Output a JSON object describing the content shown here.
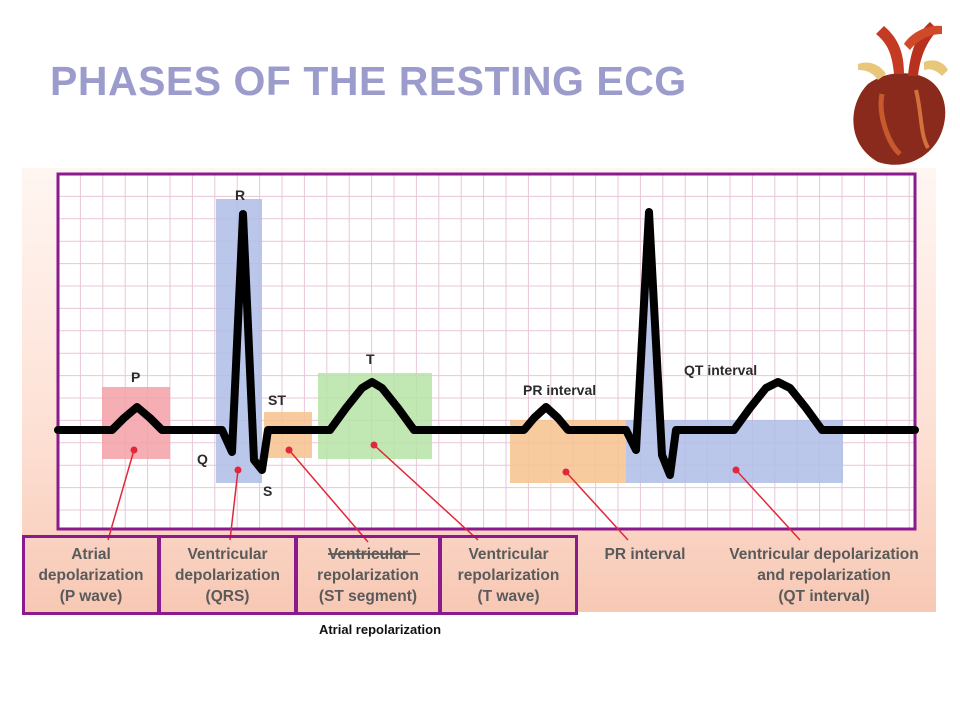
{
  "title": "PHASES OF THE RESTING ECG",
  "wave_labels": {
    "P": "P",
    "Q": "Q",
    "R": "R",
    "S": "S",
    "ST": "ST",
    "T": "T",
    "pr_interval": "PR interval",
    "qt_interval": "QT interval"
  },
  "captions": [
    "Atrial\ndepolarization\n(P wave)",
    "Ventricular\ndepolarization\n(QRS)",
    "Ventricular\nrepolarization\n(ST segment)",
    "Ventricular\nrepolarization\n(T wave)",
    "PR interval",
    "Ventricular depolarization\nand repolarization\n(QT interval)"
  ],
  "bottom_note": "Atrial repolarization",
  "colors": {
    "title": "#9c9ccc",
    "box_border": "#8b1a8e",
    "p_region": "#f4a0a8",
    "qrs_region": "#aebde6",
    "st_region": "#f7c28e",
    "t_region": "#b6e3a6",
    "pr_region": "#f7c28e",
    "qt_region": "#aebde6",
    "pointer": "#e0283a",
    "trace": "#000000"
  }
}
